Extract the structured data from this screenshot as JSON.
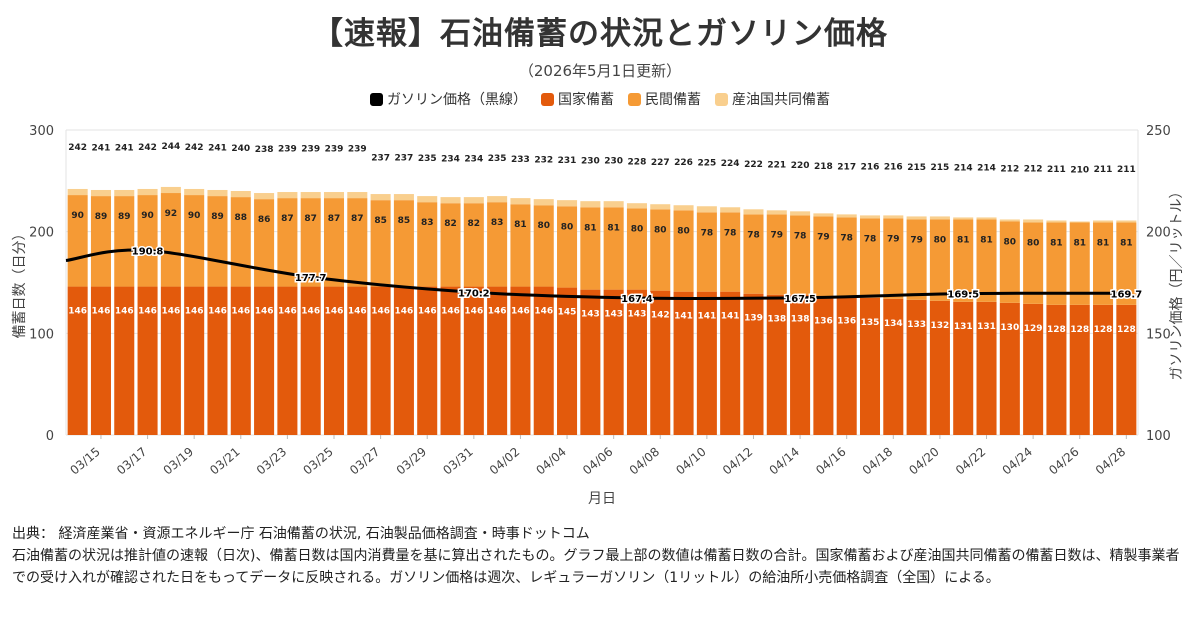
{
  "title": "【速報】石油備蓄の状況とガソリン価格",
  "subtitle": "（2026年5月1日更新）",
  "legend": {
    "line": "ガソリン価格（黒線）",
    "national": "国家備蓄",
    "private": "民間備蓄",
    "joint": "産油国共同備蓄"
  },
  "footer": {
    "source": "出典： 経済産業省・資源エネルギー庁 石油備蓄の状況, 石油製品価格調査・時事ドットコム",
    "note": "石油備蓄の状況は推計値の速報（日次)、備蓄日数は国内消費量を基に算出されたもの。グラフ最上部の数値は備蓄日数の合計。国家備蓄および産油国共同備蓄の備蓄日数は、精製事業者での受け入れが確認された日をもってデータに反映される。ガソリン価格は週次、レギュラーガソリン（1リットル）の給油所小売価格調査（全国）による。"
  },
  "chart_data": {
    "type": "bar",
    "stacked": true,
    "xlabel": "月日",
    "ylabel": "備蓄日数（日分）",
    "y2label": "ガソリン価格（円／リットル）",
    "ylim": [
      0,
      300
    ],
    "y2lim": [
      100,
      250
    ],
    "yticks": [
      0,
      100,
      200,
      300
    ],
    "y2ticks": [
      100,
      150,
      200,
      250
    ],
    "xtick_labels": [
      "03/15",
      "03/17",
      "03/19",
      "03/21",
      "03/23",
      "03/25",
      "03/27",
      "03/29",
      "03/31",
      "04/02",
      "04/04",
      "04/06",
      "04/08",
      "04/10",
      "04/12",
      "04/14",
      "04/16",
      "04/18",
      "04/20",
      "04/22",
      "04/24",
      "04/26",
      "04/28"
    ],
    "colors": {
      "national": "#e35a0c",
      "private": "#f59a35",
      "joint": "#f9cf8e",
      "line": "#000000"
    },
    "totals": [
      242,
      241,
      241,
      242,
      244,
      242,
      241,
      240,
      238,
      239,
      239,
      239,
      239,
      237,
      237,
      235,
      234,
      234,
      235,
      233,
      232,
      231,
      230,
      230,
      228,
      227,
      226,
      225,
      224,
      222,
      221,
      220,
      218,
      217,
      216,
      216,
      215,
      215,
      214,
      214,
      212,
      212,
      211,
      210,
      211,
      211
    ],
    "series": [
      {
        "name": "国家備蓄",
        "values": [
          146,
          146,
          146,
          146,
          146,
          146,
          146,
          146,
          146,
          146,
          146,
          146,
          146,
          146,
          146,
          146,
          146,
          146,
          146,
          146,
          146,
          145,
          143,
          143,
          143,
          142,
          141,
          141,
          141,
          139,
          138,
          138,
          136,
          136,
          135,
          134,
          133,
          132,
          131,
          131,
          130,
          129,
          128,
          128,
          128,
          128
        ]
      },
      {
        "name": "民間備蓄",
        "values": [
          90,
          89,
          89,
          90,
          92,
          90,
          89,
          88,
          86,
          87,
          87,
          87,
          87,
          85,
          85,
          83,
          82,
          82,
          83,
          81,
          80,
          80,
          81,
          81,
          80,
          80,
          80,
          78,
          78,
          78,
          79,
          78,
          79,
          78,
          78,
          79,
          79,
          80,
          81,
          81,
          80,
          80,
          81,
          81,
          81,
          81
        ]
      },
      {
        "name": "産油国共同備蓄",
        "values": [
          6,
          6,
          6,
          6,
          6,
          6,
          6,
          6,
          6,
          6,
          6,
          6,
          6,
          6,
          6,
          6,
          6,
          6,
          6,
          6,
          6,
          6,
          6,
          6,
          5,
          5,
          5,
          6,
          5,
          5,
          4,
          4,
          3,
          3,
          3,
          3,
          3,
          3,
          2,
          2,
          2,
          3,
          2,
          1,
          2,
          2
        ]
      }
    ],
    "line": {
      "name": "ガソリン価格",
      "points": [
        {
          "x": -0.5,
          "y": 185.8
        },
        {
          "x": 3,
          "y": 190.8
        },
        {
          "x": 10,
          "y": 177.7
        },
        {
          "x": 17,
          "y": 170.2
        },
        {
          "x": 24,
          "y": 167.4
        },
        {
          "x": 31,
          "y": 167.5
        },
        {
          "x": 38,
          "y": 169.5
        },
        {
          "x": 45,
          "y": 169.7
        }
      ],
      "labeled": [
        {
          "x": 3,
          "label": "190.8"
        },
        {
          "x": 10,
          "label": "177.7"
        },
        {
          "x": 17,
          "label": "170.2"
        },
        {
          "x": 24,
          "label": "167.4"
        },
        {
          "x": 31,
          "label": "167.5"
        },
        {
          "x": 38,
          "label": "169.5"
        },
        {
          "x": 45,
          "label": "169.7"
        }
      ]
    }
  }
}
